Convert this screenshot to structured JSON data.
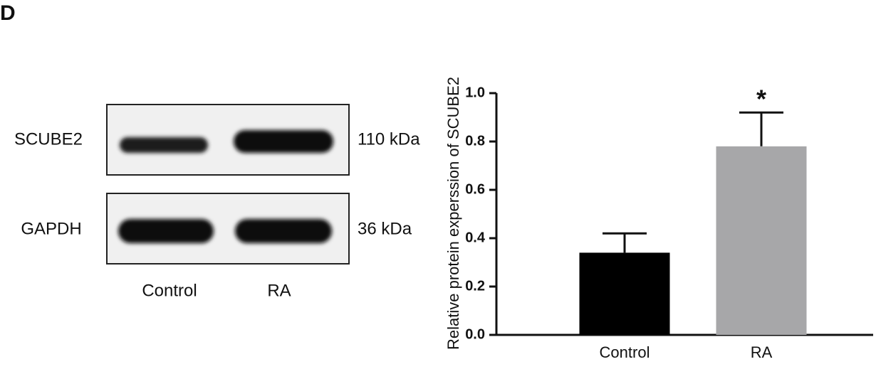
{
  "panel_label": "D",
  "blot": {
    "rows": [
      {
        "label": "SCUBE2",
        "size": "110 kDa"
      },
      {
        "label": "GAPDH",
        "size": "36 kDa"
      }
    ],
    "lanes": [
      "Control",
      "RA"
    ]
  },
  "chart_data": {
    "type": "bar",
    "y_label": "Relative protein experssion of SCUBE2",
    "categories": [
      "Control",
      "RA"
    ],
    "values": [
      0.34,
      0.78
    ],
    "errors": [
      0.08,
      0.14
    ],
    "colors": [
      "#000000",
      "#a7a7a9"
    ],
    "ylim": [
      0,
      1.0
    ],
    "yticks": [
      {
        "value": 0,
        "label": "0.0"
      },
      0.2,
      0.4,
      0.6,
      0.8,
      {
        "value": 1,
        "label": "1.0"
      }
    ],
    "annotations": [
      {
        "text": "*",
        "x": "RA"
      }
    ]
  }
}
